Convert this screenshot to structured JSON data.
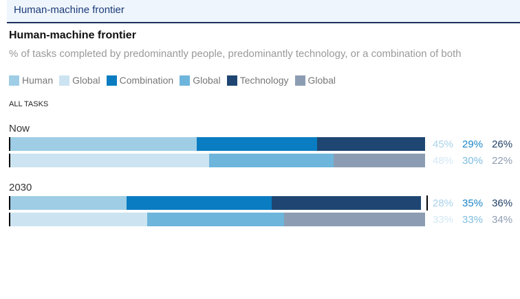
{
  "header": {
    "title": "Human-machine frontier"
  },
  "chart_data": {
    "type": "bar",
    "stacked": true,
    "orientation": "horizontal",
    "title": "Human-machine frontier",
    "subtitle": "% of tasks completed by predominantly people, predominantly technology, or a combination of both",
    "section_label": "ALL TASKS",
    "legend": [
      {
        "label": "Human",
        "color": "#9fcde6"
      },
      {
        "label": "Global",
        "color": "#cce4f1"
      },
      {
        "label": "Combination",
        "color": "#0a7cc1"
      },
      {
        "label": "Global",
        "color": "#6eb5dc"
      },
      {
        "label": "Technology",
        "color": "#1f4672"
      },
      {
        "label": "Global",
        "color": "#8c9db3"
      }
    ],
    "groups": [
      {
        "label": "Now",
        "rows": [
          {
            "values": [
              45,
              29,
              26
            ],
            "labels": [
              "45%",
              "29%",
              "26%"
            ],
            "colors": [
              "#9fcde6",
              "#0a7cc1",
              "#1f4672"
            ],
            "text_colors": [
              "#a9d2ea",
              "#1a85c8",
              "#1f3f66"
            ]
          },
          {
            "values": [
              48,
              30,
              22
            ],
            "labels": [
              "48%",
              "30%",
              "22%"
            ],
            "colors": [
              "#cce4f1",
              "#6eb5dc",
              "#8c9db3"
            ],
            "text_colors": [
              "#d3e8f4",
              "#7dbde0",
              "#8e9cb0"
            ]
          }
        ]
      },
      {
        "label": "2030",
        "rows": [
          {
            "values": [
              28,
              35,
              36
            ],
            "labels": [
              "28%",
              "35%",
              "36%"
            ],
            "colors": [
              "#9fcde6",
              "#0a7cc1",
              "#1f4672"
            ],
            "text_colors": [
              "#a9d2ea",
              "#1a85c8",
              "#1f3f66"
            ]
          },
          {
            "values": [
              33,
              33,
              34
            ],
            "labels": [
              "33%",
              "33%",
              "34%"
            ],
            "colors": [
              "#cce4f1",
              "#6eb5dc",
              "#8c9db3"
            ],
            "text_colors": [
              "#d3e8f4",
              "#7dbde0",
              "#8e9cb0"
            ]
          }
        ]
      }
    ],
    "xlim": [
      0,
      100
    ]
  }
}
